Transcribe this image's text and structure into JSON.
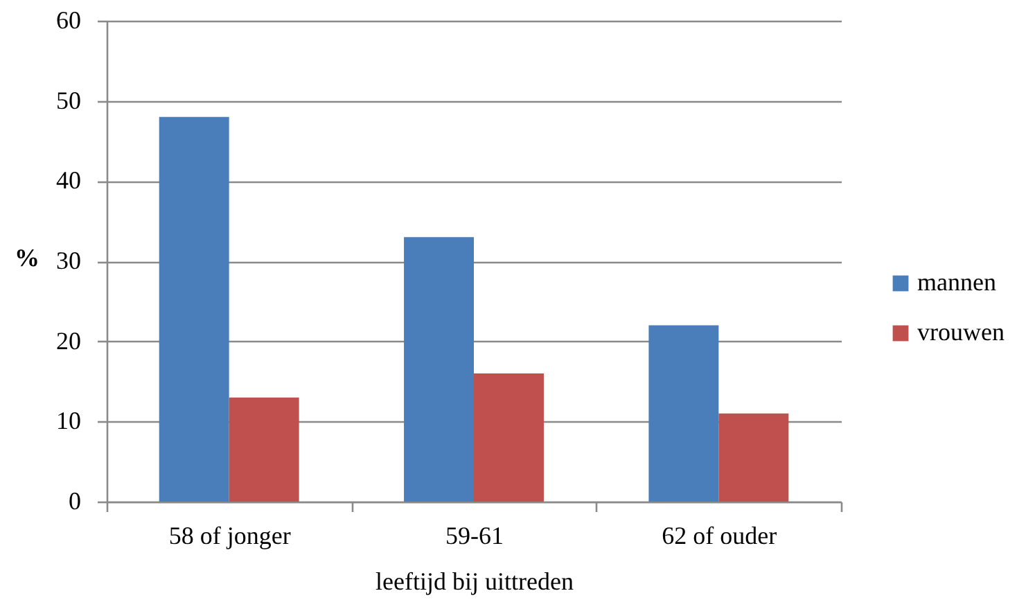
{
  "chart_data": {
    "type": "bar",
    "xlabel": "leeftijd bij uittreden",
    "ylabel": "%",
    "categories": [
      "58 of jonger",
      "59-61",
      "62 of ouder"
    ],
    "series": [
      {
        "name": "mannen",
        "color": "#4a7ebb",
        "values": [
          48,
          33,
          22
        ]
      },
      {
        "name": "vrouwen",
        "color": "#c0504d",
        "values": [
          13,
          16,
          11
        ]
      }
    ],
    "ylim": [
      0,
      60
    ],
    "yticks": [
      0,
      10,
      20,
      30,
      40,
      50,
      60
    ],
    "grid": "y",
    "legend": "right"
  }
}
